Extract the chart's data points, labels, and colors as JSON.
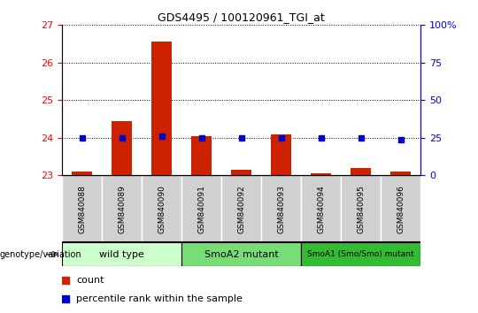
{
  "title": "GDS4495 / 100120961_TGI_at",
  "samples": [
    "GSM840088",
    "GSM840089",
    "GSM840090",
    "GSM840091",
    "GSM840092",
    "GSM840093",
    "GSM840094",
    "GSM840095",
    "GSM840096"
  ],
  "count_values": [
    23.1,
    24.45,
    26.55,
    24.05,
    23.15,
    24.1,
    23.05,
    23.2,
    23.1
  ],
  "percentile_values": [
    24.0,
    24.0,
    24.05,
    24.0,
    24.0,
    24.0,
    24.0,
    24.0,
    23.95
  ],
  "ylim_left": [
    23,
    27
  ],
  "ylim_right": [
    0,
    100
  ],
  "yticks_left": [
    23,
    24,
    25,
    26,
    27
  ],
  "yticks_right": [
    0,
    25,
    50,
    75,
    100
  ],
  "bar_color": "#cc2200",
  "dot_color": "#0000cc",
  "groups": [
    {
      "label": "wild type",
      "start": 0,
      "end": 3,
      "color": "#ccffcc"
    },
    {
      "label": "SmoA2 mutant",
      "start": 3,
      "end": 6,
      "color": "#77dd77"
    },
    {
      "label": "SmoA1 (Smo/Smo) mutant",
      "start": 6,
      "end": 9,
      "color": "#33bb33"
    }
  ],
  "legend_count_label": "count",
  "legend_percentile_label": "percentile rank within the sample",
  "genotype_label": "genotype/variation"
}
